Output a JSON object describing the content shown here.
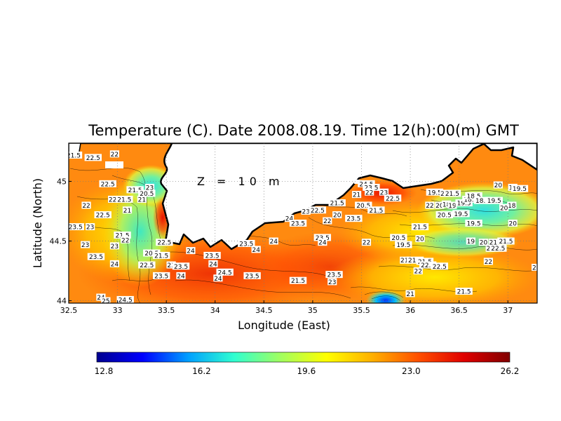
{
  "title": "Temperature (C). Date 2008.08.19. Time 12(h):00(m) GMT",
  "annotation": "Z = 10 m",
  "xlabel": "Longitude (East)",
  "ylabel": "Latitude (North)",
  "xticks": [
    "32.5",
    "33",
    "33.5",
    "34",
    "34.5",
    "35",
    "35.5",
    "36",
    "36.5",
    "37"
  ],
  "yticks": [
    "44",
    "44.5",
    "45"
  ],
  "colorbar": {
    "ticks": [
      "12.8",
      "16.2",
      "19.6",
      "23.0",
      "26.2"
    ],
    "colors": [
      "#00008f",
      "#0000ff",
      "#00a0ff",
      "#30ffd0",
      "#a0ff60",
      "#ffff00",
      "#ffb000",
      "#ff5000",
      "#e00000",
      "#800000"
    ]
  },
  "chart_data": {
    "type": "heatmap",
    "title": "Temperature (C). Date 2008.08.19. Time 12(h):00(m) GMT",
    "xlabel": "Longitude (East)",
    "ylabel": "Latitude (North)",
    "xlim": [
      32.5,
      37.3
    ],
    "ylim": [
      43.98,
      45.32
    ],
    "value_range": [
      12.8,
      26.2
    ],
    "grid": true,
    "contour_labels": [
      {
        "lon": 32.55,
        "lat": 45.22,
        "text": "21.5"
      },
      {
        "lon": 32.75,
        "lat": 45.2,
        "text": "22.5"
      },
      {
        "lon": 32.97,
        "lat": 45.23,
        "text": "22"
      },
      {
        "lon": 32.9,
        "lat": 44.98,
        "text": "22.5"
      },
      {
        "lon": 32.95,
        "lat": 44.85,
        "text": "22"
      },
      {
        "lon": 32.68,
        "lat": 44.8,
        "text": "22"
      },
      {
        "lon": 32.85,
        "lat": 44.72,
        "text": "22.5"
      },
      {
        "lon": 32.57,
        "lat": 44.62,
        "text": "23.5"
      },
      {
        "lon": 32.72,
        "lat": 44.62,
        "text": "23"
      },
      {
        "lon": 32.67,
        "lat": 44.47,
        "text": "23"
      },
      {
        "lon": 32.78,
        "lat": 44.37,
        "text": "23.5"
      },
      {
        "lon": 32.97,
        "lat": 44.46,
        "text": "23"
      },
      {
        "lon": 32.97,
        "lat": 44.31,
        "text": "24"
      },
      {
        "lon": 33.07,
        "lat": 44.85,
        "text": "21.5"
      },
      {
        "lon": 33.18,
        "lat": 44.93,
        "text": "21.5"
      },
      {
        "lon": 33.3,
        "lat": 44.9,
        "text": "20.5"
      },
      {
        "lon": 33.33,
        "lat": 44.95,
        "text": "23"
      },
      {
        "lon": 33.25,
        "lat": 44.85,
        "text": "21"
      },
      {
        "lon": 33.1,
        "lat": 44.76,
        "text": "21"
      },
      {
        "lon": 33.05,
        "lat": 44.55,
        "text": "21.5"
      },
      {
        "lon": 33.08,
        "lat": 44.51,
        "text": "22"
      },
      {
        "lon": 33.48,
        "lat": 44.49,
        "text": "22.5"
      },
      {
        "lon": 33.35,
        "lat": 44.4,
        "text": "20.5"
      },
      {
        "lon": 33.45,
        "lat": 44.38,
        "text": "21.5"
      },
      {
        "lon": 33.3,
        "lat": 44.3,
        "text": "22.5"
      },
      {
        "lon": 33.55,
        "lat": 44.3,
        "text": "23"
      },
      {
        "lon": 33.65,
        "lat": 44.29,
        "text": "23.5"
      },
      {
        "lon": 33.45,
        "lat": 44.21,
        "text": "23.5"
      },
      {
        "lon": 33.65,
        "lat": 44.21,
        "text": "24"
      },
      {
        "lon": 32.83,
        "lat": 44.03,
        "text": "24"
      },
      {
        "lon": 32.88,
        "lat": 44.0,
        "text": "25"
      },
      {
        "lon": 33.08,
        "lat": 44.01,
        "text": "24.5"
      },
      {
        "lon": 33.75,
        "lat": 44.42,
        "text": "24"
      },
      {
        "lon": 33.97,
        "lat": 44.38,
        "text": "23.5"
      },
      {
        "lon": 33.98,
        "lat": 44.31,
        "text": "24"
      },
      {
        "lon": 34.1,
        "lat": 44.24,
        "text": "24.5"
      },
      {
        "lon": 34.03,
        "lat": 44.19,
        "text": "24"
      },
      {
        "lon": 34.32,
        "lat": 44.48,
        "text": "23.5"
      },
      {
        "lon": 34.42,
        "lat": 44.43,
        "text": "24"
      },
      {
        "lon": 34.6,
        "lat": 44.5,
        "text": "24"
      },
      {
        "lon": 34.38,
        "lat": 44.21,
        "text": "23.5"
      },
      {
        "lon": 34.76,
        "lat": 44.69,
        "text": "24"
      },
      {
        "lon": 34.85,
        "lat": 44.65,
        "text": "23.5"
      },
      {
        "lon": 34.93,
        "lat": 44.75,
        "text": "23"
      },
      {
        "lon": 35.05,
        "lat": 44.76,
        "text": "22.5"
      },
      {
        "lon": 35.15,
        "lat": 44.67,
        "text": "22"
      },
      {
        "lon": 35.1,
        "lat": 44.53,
        "text": "23.5"
      },
      {
        "lon": 35.1,
        "lat": 44.49,
        "text": "24"
      },
      {
        "lon": 35.25,
        "lat": 44.82,
        "text": "21.5"
      },
      {
        "lon": 35.25,
        "lat": 44.72,
        "text": "20"
      },
      {
        "lon": 35.42,
        "lat": 44.69,
        "text": "23.5"
      },
      {
        "lon": 35.22,
        "lat": 44.22,
        "text": "23.5"
      },
      {
        "lon": 35.2,
        "lat": 44.16,
        "text": "23"
      },
      {
        "lon": 34.85,
        "lat": 44.17,
        "text": "21.5"
      },
      {
        "lon": 35.55,
        "lat": 44.98,
        "text": "24.5"
      },
      {
        "lon": 35.6,
        "lat": 44.95,
        "text": "23.5"
      },
      {
        "lon": 35.58,
        "lat": 44.91,
        "text": "22"
      },
      {
        "lon": 35.73,
        "lat": 44.91,
        "text": "23"
      },
      {
        "lon": 35.45,
        "lat": 44.89,
        "text": "21"
      },
      {
        "lon": 35.52,
        "lat": 44.8,
        "text": "20.5"
      },
      {
        "lon": 35.65,
        "lat": 44.76,
        "text": "21.5"
      },
      {
        "lon": 35.82,
        "lat": 44.86,
        "text": "22.5"
      },
      {
        "lon": 35.55,
        "lat": 44.49,
        "text": "22"
      },
      {
        "lon": 35.88,
        "lat": 44.53,
        "text": "20.5"
      },
      {
        "lon": 35.93,
        "lat": 44.47,
        "text": "19.5"
      },
      {
        "lon": 36.1,
        "lat": 44.62,
        "text": "21.5"
      },
      {
        "lon": 36.1,
        "lat": 44.52,
        "text": "20"
      },
      {
        "lon": 35.94,
        "lat": 44.34,
        "text": "21"
      },
      {
        "lon": 36.05,
        "lat": 44.34,
        "text": "21.5"
      },
      {
        "lon": 36.15,
        "lat": 44.33,
        "text": "21.5"
      },
      {
        "lon": 36.18,
        "lat": 44.3,
        "text": "22.5"
      },
      {
        "lon": 36.08,
        "lat": 44.25,
        "text": "22"
      },
      {
        "lon": 36.3,
        "lat": 44.29,
        "text": "22.5"
      },
      {
        "lon": 36.0,
        "lat": 44.06,
        "text": "21"
      },
      {
        "lon": 36.25,
        "lat": 44.91,
        "text": "19.5"
      },
      {
        "lon": 36.35,
        "lat": 44.9,
        "text": "20"
      },
      {
        "lon": 36.43,
        "lat": 44.9,
        "text": "21.5"
      },
      {
        "lon": 36.2,
        "lat": 44.8,
        "text": "22"
      },
      {
        "lon": 36.3,
        "lat": 44.8,
        "text": "20"
      },
      {
        "lon": 36.37,
        "lat": 44.81,
        "text": "18"
      },
      {
        "lon": 36.43,
        "lat": 44.8,
        "text": "19"
      },
      {
        "lon": 36.55,
        "lat": 44.82,
        "text": "19.5"
      },
      {
        "lon": 36.62,
        "lat": 44.85,
        "text": "18.5"
      },
      {
        "lon": 36.65,
        "lat": 44.88,
        "text": "18.5"
      },
      {
        "lon": 36.74,
        "lat": 44.84,
        "text": "18.5"
      },
      {
        "lon": 36.86,
        "lat": 44.84,
        "text": "19.5"
      },
      {
        "lon": 36.9,
        "lat": 44.97,
        "text": "20"
      },
      {
        "lon": 37.05,
        "lat": 44.95,
        "text": "19"
      },
      {
        "lon": 37.12,
        "lat": 44.94,
        "text": "19.5"
      },
      {
        "lon": 37.04,
        "lat": 44.8,
        "text": "18"
      },
      {
        "lon": 36.96,
        "lat": 44.78,
        "text": "20"
      },
      {
        "lon": 36.35,
        "lat": 44.72,
        "text": "20.5"
      },
      {
        "lon": 36.52,
        "lat": 44.73,
        "text": "19.5"
      },
      {
        "lon": 36.65,
        "lat": 44.65,
        "text": "19.5"
      },
      {
        "lon": 37.05,
        "lat": 44.65,
        "text": "20"
      },
      {
        "lon": 36.62,
        "lat": 44.5,
        "text": "19"
      },
      {
        "lon": 36.75,
        "lat": 44.49,
        "text": "20"
      },
      {
        "lon": 36.85,
        "lat": 44.49,
        "text": "21"
      },
      {
        "lon": 36.98,
        "lat": 44.5,
        "text": "21.5"
      },
      {
        "lon": 36.82,
        "lat": 44.44,
        "text": "22"
      },
      {
        "lon": 36.9,
        "lat": 44.44,
        "text": "22.5"
      },
      {
        "lon": 36.8,
        "lat": 44.33,
        "text": "22"
      },
      {
        "lon": 36.55,
        "lat": 44.08,
        "text": "21.5"
      },
      {
        "lon": 37.27,
        "lat": 44.28,
        "text": "2"
      }
    ]
  }
}
